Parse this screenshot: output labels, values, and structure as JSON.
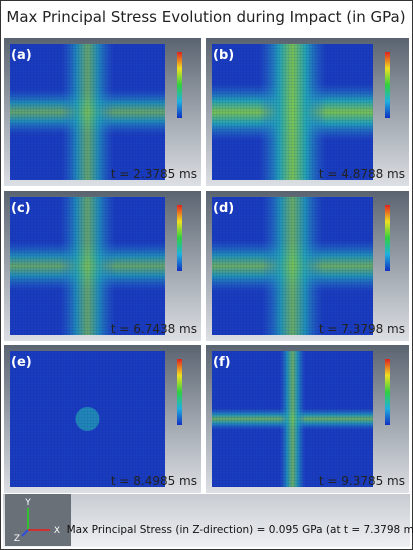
{
  "header": {
    "title": "Max Principal Stress Evolution during Impact (in GPa)"
  },
  "panels": [
    {
      "label": "(a)",
      "time": "t =  2.3785 ms"
    },
    {
      "label": "(b)",
      "time": "t =  4.8788 ms"
    },
    {
      "label": "(c)",
      "time": "t =  6.7438 ms"
    },
    {
      "label": "(d)",
      "time": "t =  7.3798 ms"
    },
    {
      "label": "(e)",
      "time": "t =  8.4985 ms"
    },
    {
      "label": "(f)",
      "time": "t =  9.3785 ms"
    }
  ],
  "triad": {
    "y": "Y",
    "z": "Z",
    "x": "X"
  },
  "footer": {
    "caption": "Max Principal Stress (in Z-direction) = 0.095 GPa (at t = 7.3798 ms)"
  }
}
